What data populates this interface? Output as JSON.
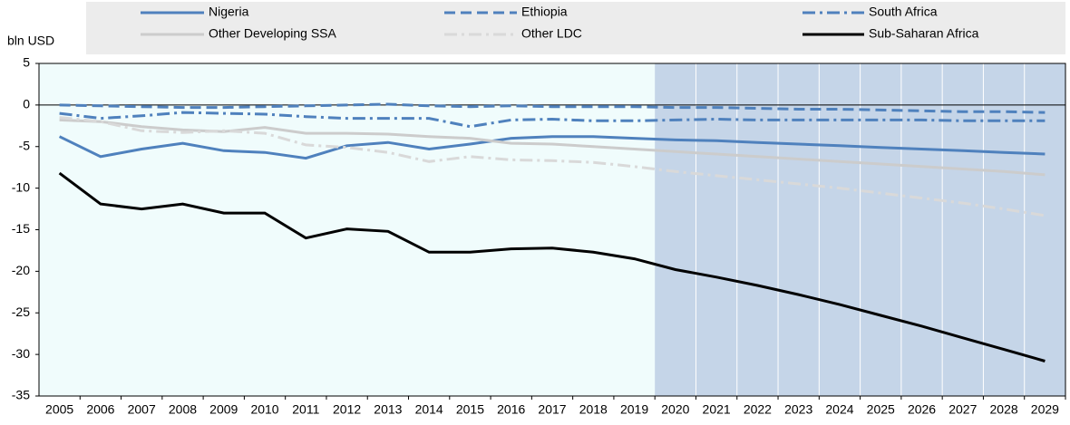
{
  "chart_data": {
    "type": "line",
    "y_label": "bln USD",
    "categories": [
      "2005",
      "2006",
      "2007",
      "2008",
      "2009",
      "2010",
      "2011",
      "2012",
      "2013",
      "2014",
      "2015",
      "2016",
      "2017",
      "2018",
      "2019",
      "2020",
      "2021",
      "2022",
      "2023",
      "2024",
      "2025",
      "2026",
      "2027",
      "2028",
      "2029"
    ],
    "shaded_from": "2020",
    "series": [
      {
        "name": "Nigeria",
        "color": "#4f81bd",
        "style": "solid",
        "values": [
          -3.8,
          -6.2,
          -5.3,
          -4.6,
          -5.5,
          -5.7,
          -6.4,
          -4.9,
          -4.5,
          -5.3,
          -4.7,
          -4.0,
          -3.8,
          -3.8,
          -4.0,
          -4.2,
          -4.3,
          -4.5,
          -4.7,
          -4.9,
          -5.1,
          -5.3,
          -5.5,
          -5.7,
          -5.9
        ]
      },
      {
        "name": "Ethiopia",
        "color": "#4f81bd",
        "style": "dashed",
        "values": [
          0,
          -0.1,
          -0.2,
          -0.3,
          -0.3,
          -0.2,
          -0.1,
          0,
          0.1,
          -0.1,
          -0.2,
          -0.1,
          -0.2,
          -0.2,
          -0.2,
          -0.3,
          -0.3,
          -0.4,
          -0.5,
          -0.5,
          -0.6,
          -0.7,
          -0.8,
          -0.8,
          -0.9
        ]
      },
      {
        "name": "South Africa",
        "color": "#4f81bd",
        "style": "dashdot",
        "values": [
          -1.0,
          -1.6,
          -1.3,
          -0.9,
          -1.0,
          -1.1,
          -1.4,
          -1.6,
          -1.6,
          -1.6,
          -2.6,
          -1.8,
          -1.7,
          -1.9,
          -1.9,
          -1.8,
          -1.7,
          -1.8,
          -1.8,
          -1.8,
          -1.8,
          -1.8,
          -1.9,
          -1.9,
          -1.9
        ]
      },
      {
        "name": "Other Developing SSA",
        "color": "#cccccc",
        "style": "solid",
        "values": [
          -1.8,
          -2.0,
          -2.6,
          -3.0,
          -3.2,
          -2.7,
          -3.4,
          -3.4,
          -3.5,
          -3.8,
          -4.0,
          -4.6,
          -4.7,
          -5.0,
          -5.3,
          -5.6,
          -5.9,
          -6.2,
          -6.5,
          -6.8,
          -7.1,
          -7.4,
          -7.7,
          -8.0,
          -8.4
        ]
      },
      {
        "name": "Other LDC",
        "color": "#d9d9d9",
        "style": "dashdot",
        "values": [
          -1.5,
          -2.0,
          -3.1,
          -3.3,
          -3.1,
          -3.4,
          -4.8,
          -5.1,
          -5.7,
          -6.8,
          -6.2,
          -6.6,
          -6.7,
          -6.9,
          -7.4,
          -8.0,
          -8.5,
          -9.0,
          -9.5,
          -10.0,
          -10.6,
          -11.2,
          -11.8,
          -12.5,
          -13.3
        ]
      },
      {
        "name": "Sub-Saharan Africa",
        "color": "#000000",
        "style": "solid",
        "values": [
          -8.2,
          -11.9,
          -12.5,
          -11.9,
          -13.0,
          -13.0,
          -16.0,
          -14.9,
          -15.2,
          -17.7,
          -17.7,
          -17.3,
          -17.2,
          -17.7,
          -18.5,
          -19.8,
          -20.7,
          -21.7,
          -22.8,
          -24.0,
          -25.3,
          -26.6,
          -28.0,
          -29.4,
          -30.8
        ]
      }
    ],
    "ylim": [
      -35,
      5
    ],
    "yticks": [
      -35,
      -30,
      -25,
      -20,
      -15,
      -10,
      -5,
      0,
      5
    ]
  }
}
